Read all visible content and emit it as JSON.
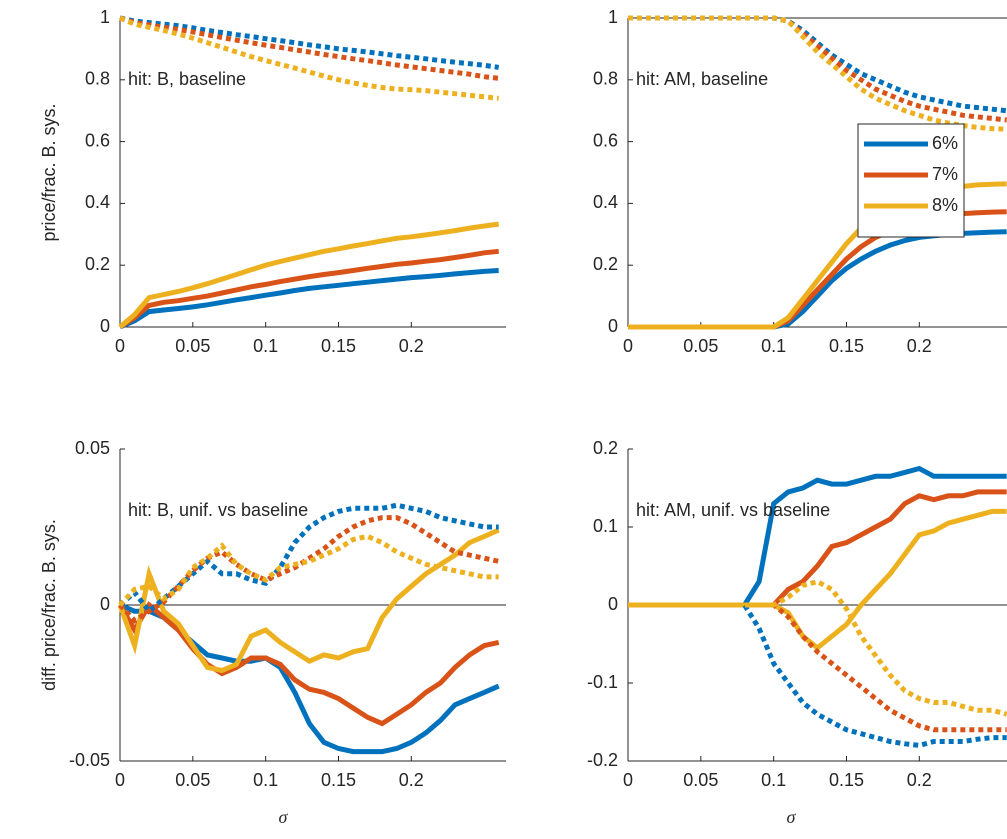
{
  "chart_data": [
    {
      "type": "line",
      "annotation": "hit: B, baseline",
      "ylabel": "price/frac. B. sys.",
      "x": [
        0,
        0.01,
        0.02,
        0.03,
        0.04,
        0.05,
        0.06,
        0.07,
        0.08,
        0.09,
        0.1,
        0.11,
        0.12,
        0.13,
        0.14,
        0.15,
        0.16,
        0.17,
        0.18,
        0.19,
        0.2,
        0.21,
        0.22,
        0.23,
        0.24,
        0.25,
        0.26
      ],
      "xlim": [
        0,
        0.265
      ],
      "xticks": [
        0,
        0.05,
        0.1,
        0.15,
        0.2
      ],
      "ylim": [
        0,
        1
      ],
      "yticks": [
        0,
        0.2,
        0.4,
        0.6,
        0.8,
        1
      ],
      "series": [
        {
          "color": "#0072bd",
          "linestyle": "solid",
          "values": [
            0,
            0.02,
            0.05,
            0.055,
            0.06,
            0.065,
            0.072,
            0.08,
            0.088,
            0.095,
            0.103,
            0.11,
            0.118,
            0.125,
            0.13,
            0.135,
            0.14,
            0.145,
            0.15,
            0.155,
            0.16,
            0.163,
            0.167,
            0.172,
            0.176,
            0.18,
            0.183
          ]
        },
        {
          "color": "#d95319",
          "linestyle": "solid",
          "values": [
            0,
            0.03,
            0.07,
            0.08,
            0.085,
            0.093,
            0.1,
            0.11,
            0.12,
            0.13,
            0.138,
            0.147,
            0.155,
            0.163,
            0.17,
            0.176,
            0.183,
            0.19,
            0.196,
            0.203,
            0.207,
            0.213,
            0.218,
            0.225,
            0.232,
            0.24,
            0.245
          ]
        },
        {
          "color": "#edb120",
          "linestyle": "solid",
          "values": [
            0,
            0.04,
            0.095,
            0.105,
            0.115,
            0.127,
            0.14,
            0.155,
            0.17,
            0.185,
            0.2,
            0.212,
            0.223,
            0.234,
            0.245,
            0.253,
            0.262,
            0.27,
            0.279,
            0.287,
            0.292,
            0.298,
            0.305,
            0.312,
            0.32,
            0.327,
            0.333
          ]
        },
        {
          "color": "#0072bd",
          "linestyle": "dotted",
          "values": [
            1,
            0.99,
            0.985,
            0.98,
            0.975,
            0.968,
            0.96,
            0.953,
            0.946,
            0.94,
            0.933,
            0.927,
            0.92,
            0.913,
            0.907,
            0.9,
            0.895,
            0.89,
            0.884,
            0.878,
            0.873,
            0.868,
            0.862,
            0.857,
            0.852,
            0.847,
            0.84
          ]
        },
        {
          "color": "#d95319",
          "linestyle": "dotted",
          "values": [
            1,
            0.985,
            0.978,
            0.97,
            0.963,
            0.955,
            0.946,
            0.937,
            0.928,
            0.92,
            0.912,
            0.905,
            0.897,
            0.89,
            0.882,
            0.875,
            0.868,
            0.862,
            0.855,
            0.848,
            0.842,
            0.836,
            0.83,
            0.824,
            0.818,
            0.81,
            0.805
          ]
        },
        {
          "color": "#edb120",
          "linestyle": "dotted",
          "values": [
            1,
            0.98,
            0.97,
            0.96,
            0.948,
            0.935,
            0.92,
            0.905,
            0.89,
            0.875,
            0.862,
            0.85,
            0.838,
            0.825,
            0.812,
            0.8,
            0.79,
            0.782,
            0.775,
            0.77,
            0.768,
            0.765,
            0.76,
            0.755,
            0.75,
            0.745,
            0.74
          ]
        }
      ]
    },
    {
      "type": "line",
      "annotation": "hit: AM, baseline",
      "refline": 1,
      "legend": "northeast",
      "x": [
        0,
        0.01,
        0.02,
        0.03,
        0.04,
        0.05,
        0.06,
        0.07,
        0.08,
        0.09,
        0.1,
        0.11,
        0.12,
        0.13,
        0.14,
        0.15,
        0.16,
        0.17,
        0.18,
        0.19,
        0.2,
        0.21,
        0.22,
        0.23,
        0.24,
        0.25,
        0.26
      ],
      "xlim": [
        0,
        0.265
      ],
      "xticks": [
        0,
        0.05,
        0.1,
        0.15,
        0.2
      ],
      "ylim": [
        0,
        1
      ],
      "yticks": [
        0,
        0.2,
        0.4,
        0.6,
        0.8,
        1
      ],
      "series": [
        {
          "name": "6%",
          "color": "#0072bd",
          "linestyle": "solid",
          "values": [
            0,
            0,
            0,
            0,
            0,
            0,
            0,
            0,
            0,
            0,
            0,
            0.01,
            0.05,
            0.1,
            0.15,
            0.19,
            0.22,
            0.245,
            0.265,
            0.28,
            0.29,
            0.295,
            0.3,
            0.303,
            0.305,
            0.307,
            0.308
          ]
        },
        {
          "name": "7%",
          "color": "#d95319",
          "linestyle": "solid",
          "values": [
            0,
            0,
            0,
            0,
            0,
            0,
            0,
            0,
            0,
            0,
            0,
            0.02,
            0.07,
            0.12,
            0.17,
            0.22,
            0.26,
            0.29,
            0.31,
            0.33,
            0.345,
            0.355,
            0.362,
            0.367,
            0.37,
            0.372,
            0.373
          ]
        },
        {
          "name": "8%",
          "color": "#edb120",
          "linestyle": "solid",
          "values": [
            0,
            0,
            0,
            0,
            0,
            0,
            0,
            0,
            0,
            0,
            0,
            0.03,
            0.09,
            0.15,
            0.21,
            0.27,
            0.32,
            0.36,
            0.39,
            0.41,
            0.43,
            0.44,
            0.45,
            0.455,
            0.46,
            0.462,
            0.463
          ]
        },
        {
          "color": "#0072bd",
          "linestyle": "dotted",
          "values": [
            1,
            1,
            1,
            1,
            1,
            1,
            1,
            1,
            1,
            1,
            1,
            0.99,
            0.96,
            0.92,
            0.88,
            0.85,
            0.82,
            0.8,
            0.78,
            0.76,
            0.745,
            0.735,
            0.725,
            0.715,
            0.71,
            0.705,
            0.7
          ]
        },
        {
          "color": "#d95319",
          "linestyle": "dotted",
          "values": [
            1,
            1,
            1,
            1,
            1,
            1,
            1,
            1,
            1,
            1,
            1,
            0.99,
            0.95,
            0.91,
            0.87,
            0.83,
            0.8,
            0.77,
            0.75,
            0.73,
            0.715,
            0.705,
            0.695,
            0.685,
            0.68,
            0.675,
            0.67
          ]
        },
        {
          "color": "#edb120",
          "linestyle": "dotted",
          "values": [
            1,
            1,
            1,
            1,
            1,
            1,
            1,
            1,
            1,
            1,
            1,
            0.99,
            0.94,
            0.89,
            0.85,
            0.81,
            0.77,
            0.74,
            0.72,
            0.7,
            0.685,
            0.67,
            0.66,
            0.652,
            0.646,
            0.642,
            0.64
          ]
        }
      ]
    },
    {
      "type": "line",
      "annotation": "hit: B, unif. vs baseline",
      "ylabel": "diff. price/frac. B. sys.",
      "xlabel": "σ",
      "refline": 0,
      "x": [
        0,
        0.01,
        0.02,
        0.03,
        0.04,
        0.05,
        0.06,
        0.07,
        0.08,
        0.09,
        0.1,
        0.11,
        0.12,
        0.13,
        0.14,
        0.15,
        0.16,
        0.17,
        0.18,
        0.19,
        0.2,
        0.21,
        0.22,
        0.23,
        0.24,
        0.25,
        0.26
      ],
      "xlim": [
        0,
        0.265
      ],
      "xticks": [
        0,
        0.05,
        0.1,
        0.15,
        0.2
      ],
      "ylim": [
        -0.05,
        0.05
      ],
      "yticks": [
        -0.05,
        0,
        0.05
      ],
      "series": [
        {
          "color": "#0072bd",
          "linestyle": "solid",
          "values": [
            0,
            -0.002,
            -0.002,
            -0.004,
            -0.008,
            -0.012,
            -0.016,
            -0.017,
            -0.018,
            -0.018,
            -0.017,
            -0.02,
            -0.028,
            -0.038,
            -0.044,
            -0.046,
            -0.047,
            -0.047,
            -0.047,
            -0.046,
            -0.044,
            -0.041,
            -0.037,
            -0.032,
            -0.03,
            -0.028,
            -0.026
          ]
        },
        {
          "color": "#d95319",
          "linestyle": "solid",
          "values": [
            0,
            -0.008,
            0,
            -0.004,
            -0.008,
            -0.014,
            -0.019,
            -0.022,
            -0.02,
            -0.017,
            -0.017,
            -0.019,
            -0.024,
            -0.027,
            -0.028,
            -0.03,
            -0.033,
            -0.036,
            -0.038,
            -0.035,
            -0.032,
            -0.028,
            -0.025,
            -0.02,
            -0.016,
            -0.013,
            -0.012
          ]
        },
        {
          "color": "#edb120",
          "linestyle": "solid",
          "values": [
            0,
            -0.013,
            0.01,
            -0.002,
            -0.006,
            -0.013,
            -0.02,
            -0.021,
            -0.019,
            -0.01,
            -0.008,
            -0.012,
            -0.015,
            -0.018,
            -0.016,
            -0.017,
            -0.015,
            -0.014,
            -0.004,
            0.002,
            0.006,
            0.01,
            0.013,
            0.016,
            0.02,
            0.022,
            0.024
          ]
        },
        {
          "color": "#0072bd",
          "linestyle": "dotted",
          "values": [
            0,
            0.004,
            -0.002,
            0.002,
            0.006,
            0.01,
            0.014,
            0.01,
            0.01,
            0.008,
            0.007,
            0.012,
            0.02,
            0.025,
            0.028,
            0.03,
            0.031,
            0.031,
            0.031,
            0.032,
            0.031,
            0.03,
            0.028,
            0.027,
            0.026,
            0.025,
            0.025
          ]
        },
        {
          "color": "#d95319",
          "linestyle": "dotted",
          "values": [
            0,
            -0.005,
            -0.002,
            0.001,
            0.006,
            0.011,
            0.015,
            0.017,
            0.013,
            0.01,
            0.008,
            0.01,
            0.012,
            0.015,
            0.018,
            0.022,
            0.025,
            0.027,
            0.028,
            0.028,
            0.026,
            0.023,
            0.02,
            0.017,
            0.016,
            0.015,
            0.014
          ]
        },
        {
          "color": "#edb120",
          "linestyle": "dotted",
          "values": [
            0,
            0.005,
            0.006,
            0.002,
            0.005,
            0.012,
            0.015,
            0.019,
            0.013,
            0.01,
            0.008,
            0.012,
            0.013,
            0.014,
            0.016,
            0.018,
            0.021,
            0.022,
            0.02,
            0.017,
            0.015,
            0.013,
            0.012,
            0.011,
            0.01,
            0.009,
            0.009
          ]
        }
      ]
    },
    {
      "type": "line",
      "annotation": "hit: AM, unif. vs baseline",
      "xlabel": "σ",
      "refline": 0,
      "x": [
        0,
        0.01,
        0.02,
        0.03,
        0.04,
        0.05,
        0.06,
        0.07,
        0.08,
        0.09,
        0.1,
        0.11,
        0.12,
        0.13,
        0.14,
        0.15,
        0.16,
        0.17,
        0.18,
        0.19,
        0.2,
        0.21,
        0.22,
        0.23,
        0.24,
        0.25,
        0.26
      ],
      "xlim": [
        0,
        0.265
      ],
      "xticks": [
        0,
        0.05,
        0.1,
        0.15,
        0.2
      ],
      "ylim": [
        -0.2,
        0.2
      ],
      "yticks": [
        -0.2,
        -0.1,
        0,
        0.1,
        0.2
      ],
      "series": [
        {
          "color": "#0072bd",
          "linestyle": "solid",
          "values": [
            0,
            0,
            0,
            0,
            0,
            0,
            0,
            0,
            0,
            0.03,
            0.13,
            0.145,
            0.15,
            0.16,
            0.155,
            0.155,
            0.16,
            0.165,
            0.165,
            0.17,
            0.175,
            0.165,
            0.165,
            0.165,
            0.165,
            0.165,
            0.165
          ]
        },
        {
          "color": "#d95319",
          "linestyle": "solid",
          "values": [
            0,
            0,
            0,
            0,
            0,
            0,
            0,
            0,
            0,
            0,
            0,
            0.02,
            0.03,
            0.05,
            0.075,
            0.08,
            0.09,
            0.1,
            0.11,
            0.13,
            0.14,
            0.135,
            0.14,
            0.14,
            0.145,
            0.145,
            0.145
          ]
        },
        {
          "color": "#edb120",
          "linestyle": "solid",
          "values": [
            0,
            0,
            0,
            0,
            0,
            0,
            0,
            0,
            0,
            0,
            0,
            -0.01,
            -0.04,
            -0.055,
            -0.04,
            -0.025,
            0,
            0.02,
            0.04,
            0.065,
            0.09,
            0.095,
            0.105,
            0.11,
            0.115,
            0.12,
            0.12
          ]
        },
        {
          "color": "#0072bd",
          "linestyle": "dotted",
          "values": [
            0,
            0,
            0,
            0,
            0,
            0,
            0,
            0,
            0,
            -0.03,
            -0.075,
            -0.1,
            -0.125,
            -0.14,
            -0.15,
            -0.16,
            -0.165,
            -0.17,
            -0.175,
            -0.178,
            -0.18,
            -0.175,
            -0.175,
            -0.175,
            -0.172,
            -0.17,
            -0.17
          ]
        },
        {
          "color": "#d95319",
          "linestyle": "dotted",
          "values": [
            0,
            0,
            0,
            0,
            0,
            0,
            0,
            0,
            0,
            0,
            0,
            -0.015,
            -0.04,
            -0.06,
            -0.075,
            -0.09,
            -0.105,
            -0.12,
            -0.135,
            -0.145,
            -0.155,
            -0.16,
            -0.16,
            -0.16,
            -0.16,
            -0.16,
            -0.16
          ]
        },
        {
          "color": "#edb120",
          "linestyle": "dotted",
          "values": [
            0,
            0,
            0,
            0,
            0,
            0,
            0,
            0,
            0,
            0,
            0,
            0.01,
            0.025,
            0.03,
            0.02,
            -0.005,
            -0.04,
            -0.065,
            -0.09,
            -0.11,
            -0.12,
            -0.125,
            -0.125,
            -0.13,
            -0.135,
            -0.135,
            -0.14
          ]
        }
      ]
    }
  ]
}
